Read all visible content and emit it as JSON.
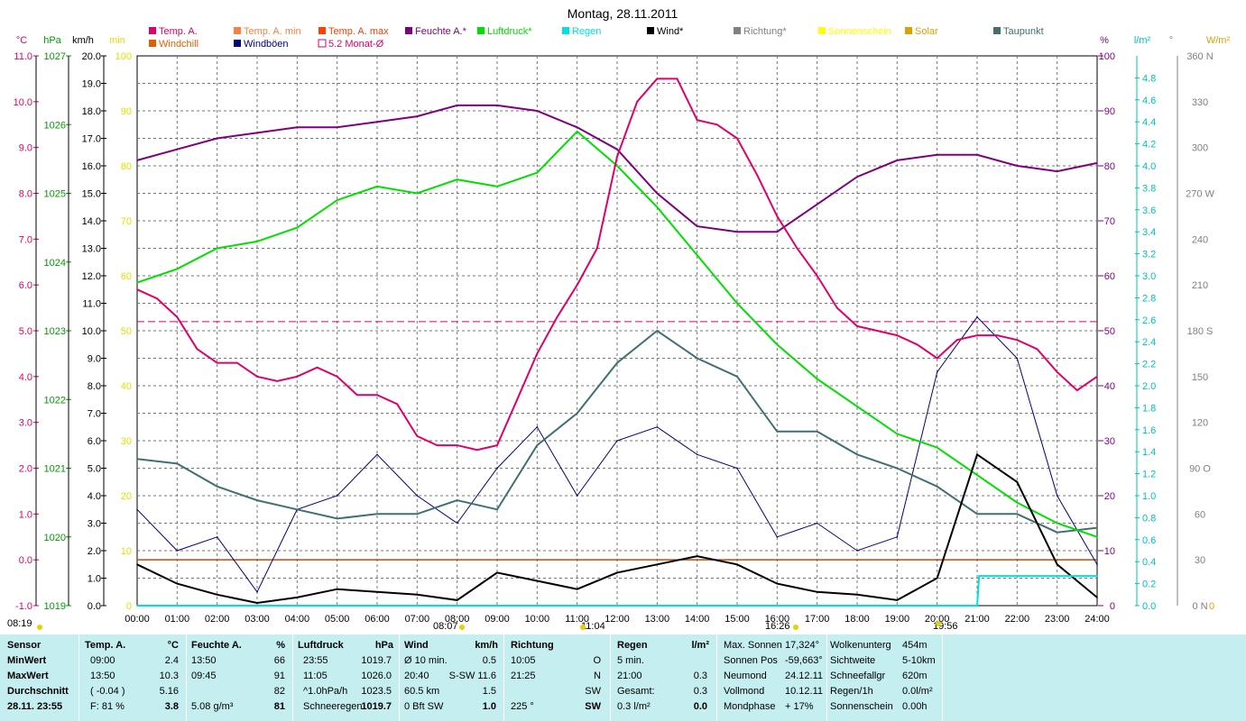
{
  "chart_data": {
    "type": "line",
    "title": "Montag, 28.11.2011",
    "legend": [
      {
        "name": "Temp. A.",
        "color": "#e0006a",
        "kind": "fill"
      },
      {
        "name": "Windchill",
        "color": "#e06000",
        "kind": "fill"
      },
      {
        "name": "Temp. A. min",
        "color": "#ff7f40",
        "kind": "fill"
      },
      {
        "name": "Windböen",
        "color": "#000080",
        "kind": "fill"
      },
      {
        "name": "Temp. A. max",
        "color": "#ff4000",
        "kind": "fill"
      },
      {
        "name": "5.2 Monat-Ø",
        "color": "#e0006a",
        "kind": "box"
      },
      {
        "name": "Feuchte A.*",
        "color": "#7f007f",
        "kind": "fill"
      },
      {
        "name": "Luftdruck*",
        "color": "#00e000",
        "kind": "fill"
      },
      {
        "name": "Regen",
        "color": "#00e0e0",
        "kind": "fill"
      },
      {
        "name": "Wind*",
        "color": "#000000",
        "kind": "fill"
      },
      {
        "name": "Richtung*",
        "color": "#808080",
        "kind": "fill"
      },
      {
        "name": "Sonnenschein",
        "color": "#ffff00",
        "kind": "fill"
      },
      {
        "name": "Solar",
        "color": "#e0a000",
        "kind": "fill"
      },
      {
        "name": "Taupunkt",
        "color": "#407070",
        "kind": "fill"
      }
    ],
    "x_ticks": [
      "00:00",
      "01:00",
      "02:00",
      "03:00",
      "04:00",
      "05:00",
      "06:00",
      "07:00",
      "08:00",
      "09:00",
      "10:00",
      "11:00",
      "12:00",
      "13:00",
      "14:00",
      "15:00",
      "16:00",
      "17:00",
      "18:00",
      "19:00",
      "20:00",
      "21:00",
      "22:00",
      "23:00",
      "24:00"
    ],
    "axes": {
      "temp": {
        "unit": "°C",
        "color": "#e0006a",
        "min": -1.0,
        "max": 11.0,
        "ticks": [
          "11.0",
          "10.0",
          "9.0",
          "8.0",
          "7.0",
          "6.0",
          "5.0",
          "4.0",
          "3.0",
          "2.0",
          "1.0",
          "0.0",
          "-1.0"
        ]
      },
      "pressure": {
        "unit": "hPa",
        "color": "#00a000",
        "min": 1019,
        "max": 1027,
        "ticks": [
          "1027",
          "1026",
          "1025",
          "1024",
          "1023",
          "1022",
          "1021",
          "1020",
          "1019"
        ]
      },
      "wind": {
        "unit": "km/h",
        "color": "#000000",
        "min": 0,
        "max": 20,
        "ticks": [
          "20.0",
          "19.0",
          "18.0",
          "17.0",
          "16.0",
          "15.0",
          "14.0",
          "13.0",
          "12.0",
          "11.0",
          "10.0",
          "9.0",
          "8.0",
          "7.0",
          "6.0",
          "5.0",
          "4.0",
          "3.0",
          "2.0",
          "1.0",
          "0.0"
        ]
      },
      "sun": {
        "unit": "min",
        "color": "#e0e000",
        "min": 0,
        "max": 100,
        "ticks": [
          "100",
          "90",
          "80",
          "70",
          "60",
          "50",
          "40",
          "30",
          "20",
          "10",
          "0"
        ]
      },
      "humidity": {
        "unit": "%",
        "color": "#7f007f",
        "min": 0,
        "max": 100,
        "ticks": [
          "100",
          "90",
          "80",
          "70",
          "60",
          "50",
          "40",
          "30",
          "20",
          "10",
          "0"
        ]
      },
      "rain": {
        "unit": "l/m²",
        "color": "#00c0c0",
        "min": 0,
        "max": 5,
        "ticks": [
          "4.8",
          "4.6",
          "4.4",
          "4.2",
          "4.0",
          "3.8",
          "3.6",
          "3.4",
          "3.2",
          "3.0",
          "2.8",
          "2.6",
          "2.4",
          "2.2",
          "2.0",
          "1.8",
          "1.6",
          "1.4",
          "1.2",
          "1.0",
          "0.8",
          "0.6",
          "0.4",
          "0.2",
          "0.0"
        ]
      },
      "direction": {
        "unit": "°",
        "color": "#808080",
        "min": 0,
        "max": 360,
        "ticks": [
          "360 N",
          "330",
          "300",
          "270 W",
          "240",
          "210",
          "180 S",
          "150",
          "120",
          "90 O",
          "60",
          "30",
          "0 N"
        ]
      },
      "solar": {
        "unit": "W/m²",
        "color": "#e0a000",
        "ticks": [
          "0"
        ]
      }
    },
    "series": [
      {
        "name": "Temp. A.",
        "axis": "temp",
        "color": "#e0006a",
        "points": [
          [
            0,
            5.9
          ],
          [
            0.5,
            5.7
          ],
          [
            1,
            5.3
          ],
          [
            1.5,
            4.6
          ],
          [
            2,
            4.3
          ],
          [
            2.5,
            4.3
          ],
          [
            3,
            4.0
          ],
          [
            3.5,
            3.9
          ],
          [
            4,
            4.0
          ],
          [
            4.5,
            4.2
          ],
          [
            5,
            4.0
          ],
          [
            5.5,
            3.6
          ],
          [
            6,
            3.6
          ],
          [
            6.5,
            3.4
          ],
          [
            7,
            2.7
          ],
          [
            7.5,
            2.5
          ],
          [
            8,
            2.5
          ],
          [
            8.5,
            2.4
          ],
          [
            9,
            2.5
          ],
          [
            9.5,
            3.5
          ],
          [
            10,
            4.5
          ],
          [
            10.5,
            5.3
          ],
          [
            11,
            6.0
          ],
          [
            11.5,
            6.8
          ],
          [
            12,
            8.8
          ],
          [
            12.5,
            10.0
          ],
          [
            13,
            10.5
          ],
          [
            13.5,
            10.5
          ],
          [
            14,
            9.6
          ],
          [
            14.5,
            9.5
          ],
          [
            15,
            9.2
          ],
          [
            15.5,
            8.4
          ],
          [
            16,
            7.5
          ],
          [
            16.5,
            6.8
          ],
          [
            17,
            6.2
          ],
          [
            17.5,
            5.5
          ],
          [
            18,
            5.1
          ],
          [
            18.5,
            5.0
          ],
          [
            19,
            4.9
          ],
          [
            19.5,
            4.7
          ],
          [
            20,
            4.4
          ],
          [
            20.5,
            4.8
          ],
          [
            21,
            4.9
          ],
          [
            21.5,
            4.9
          ],
          [
            22,
            4.8
          ],
          [
            22.5,
            4.6
          ],
          [
            23,
            4.1
          ],
          [
            23.5,
            3.7
          ],
          [
            24,
            4.0
          ]
        ]
      },
      {
        "name": "Feuchte A.*",
        "axis": "humidity",
        "color": "#7f007f",
        "points": [
          [
            0,
            81
          ],
          [
            1,
            83
          ],
          [
            2,
            85
          ],
          [
            3,
            86
          ],
          [
            4,
            87
          ],
          [
            5,
            87
          ],
          [
            6,
            88
          ],
          [
            7,
            89
          ],
          [
            8,
            91
          ],
          [
            9,
            91
          ],
          [
            10,
            90
          ],
          [
            11,
            87
          ],
          [
            12,
            83
          ],
          [
            13,
            75
          ],
          [
            14,
            69
          ],
          [
            15,
            68
          ],
          [
            16,
            68
          ],
          [
            17,
            73
          ],
          [
            18,
            78
          ],
          [
            19,
            81
          ],
          [
            20,
            82
          ],
          [
            21,
            82
          ],
          [
            22,
            80
          ],
          [
            23,
            79
          ],
          [
            24,
            80.5
          ]
        ]
      },
      {
        "name": "Luftdruck*",
        "axis": "pressure",
        "color": "#00e000",
        "points": [
          [
            0,
            1023.7
          ],
          [
            1,
            1023.9
          ],
          [
            2,
            1024.2
          ],
          [
            3,
            1024.3
          ],
          [
            4,
            1024.5
          ],
          [
            5,
            1024.9
          ],
          [
            6,
            1025.1
          ],
          [
            7,
            1025.0
          ],
          [
            8,
            1025.2
          ],
          [
            9,
            1025.1
          ],
          [
            10,
            1025.3
          ],
          [
            11,
            1025.9
          ],
          [
            12,
            1025.4
          ],
          [
            13,
            1024.8
          ],
          [
            14,
            1024.1
          ],
          [
            15,
            1023.4
          ],
          [
            16,
            1022.8
          ],
          [
            17,
            1022.3
          ],
          [
            18,
            1021.9
          ],
          [
            19,
            1021.5
          ],
          [
            20,
            1021.3
          ],
          [
            21,
            1020.9
          ],
          [
            22,
            1020.5
          ],
          [
            23,
            1020.2
          ],
          [
            24,
            1020.0
          ]
        ]
      },
      {
        "name": "Taupunkt",
        "axis": "temp",
        "color": "#407070",
        "points": [
          [
            0,
            2.2
          ],
          [
            1,
            2.1
          ],
          [
            2,
            1.6
          ],
          [
            3,
            1.3
          ],
          [
            4,
            1.1
          ],
          [
            5,
            0.9
          ],
          [
            6,
            1.0
          ],
          [
            7,
            1.0
          ],
          [
            8,
            1.3
          ],
          [
            9,
            1.1
          ],
          [
            10,
            2.5
          ],
          [
            11,
            3.2
          ],
          [
            12,
            4.3
          ],
          [
            13,
            5.0
          ],
          [
            14,
            4.4
          ],
          [
            15,
            4.0
          ],
          [
            16,
            2.8
          ],
          [
            17,
            2.8
          ],
          [
            18,
            2.3
          ],
          [
            19,
            2.0
          ],
          [
            20,
            1.6
          ],
          [
            21,
            1.0
          ],
          [
            22,
            1.0
          ],
          [
            23,
            0.6
          ],
          [
            24,
            0.7
          ]
        ]
      },
      {
        "name": "Wind*",
        "axis": "wind",
        "color": "#000000",
        "points": [
          [
            0,
            1.5
          ],
          [
            1,
            0.8
          ],
          [
            2,
            0.4
          ],
          [
            3,
            0.1
          ],
          [
            4,
            0.3
          ],
          [
            5,
            0.6
          ],
          [
            6,
            0.5
          ],
          [
            7,
            0.4
          ],
          [
            8,
            0.2
          ],
          [
            9,
            1.2
          ],
          [
            10,
            0.9
          ],
          [
            11,
            0.6
          ],
          [
            12,
            1.2
          ],
          [
            13,
            1.5
          ],
          [
            14,
            1.8
          ],
          [
            15,
            1.5
          ],
          [
            16,
            0.8
          ],
          [
            17,
            0.5
          ],
          [
            18,
            0.4
          ],
          [
            19,
            0.2
          ],
          [
            20,
            1.0
          ],
          [
            21,
            5.5
          ],
          [
            22,
            4.5
          ],
          [
            23,
            1.5
          ],
          [
            24,
            0.3
          ]
        ]
      },
      {
        "name": "Windböen",
        "axis": "wind",
        "color": "#000080",
        "points": [
          [
            0,
            3.5
          ],
          [
            1,
            2.0
          ],
          [
            2,
            2.5
          ],
          [
            3,
            0.5
          ],
          [
            4,
            3.5
          ],
          [
            5,
            4.0
          ],
          [
            6,
            5.5
          ],
          [
            7,
            4.0
          ],
          [
            8,
            3.0
          ],
          [
            9,
            5.0
          ],
          [
            10,
            6.5
          ],
          [
            11,
            4.0
          ],
          [
            12,
            6.0
          ],
          [
            13,
            6.5
          ],
          [
            14,
            5.5
          ],
          [
            15,
            5.0
          ],
          [
            16,
            2.5
          ],
          [
            17,
            3.0
          ],
          [
            18,
            2.0
          ],
          [
            19,
            2.5
          ],
          [
            20,
            8.5
          ],
          [
            21,
            10.5
          ],
          [
            22,
            9.0
          ],
          [
            23,
            4.0
          ],
          [
            24,
            1.5
          ]
        ]
      },
      {
        "name": "Regen",
        "axis": "rain",
        "color": "#00e0e0",
        "points": [
          [
            0,
            0
          ],
          [
            21,
            0
          ],
          [
            21.05,
            0.27
          ],
          [
            24,
            0.27
          ]
        ]
      }
    ],
    "monthly_avg_temp": 5.2,
    "windchill_line_temp": 0.0,
    "time_markers": [
      "08:19",
      "08:07",
      "11:04",
      "16:26",
      "19:56"
    ]
  },
  "stats": {
    "sensor": {
      "header": "Sensor",
      "rows": [
        "MinWert",
        "MaxWert",
        "Durchschnitt",
        "28.11. 23:55"
      ]
    },
    "temp": {
      "header": "Temp. A.",
      "unit": "°C",
      "rows": [
        [
          "09:00",
          "2.4"
        ],
        [
          "13:50",
          "10.3"
        ],
        [
          "( -0.04 )",
          "5.16"
        ],
        [
          "F: 81 %",
          "3.8"
        ]
      ]
    },
    "humidity": {
      "header": "Feuchte A.",
      "unit": "%",
      "rows": [
        [
          "13:50",
          "66"
        ],
        [
          "09:45",
          "91"
        ],
        [
          "",
          "82"
        ],
        [
          "5.08 g/m³",
          "81"
        ]
      ]
    },
    "pressure": {
      "header": "Luftdruck",
      "unit": "hPa",
      "rows": [
        [
          "23:55",
          "1019.7"
        ],
        [
          "11:05",
          "1026.0"
        ],
        [
          "^1.0hPa/h",
          "1023.5"
        ],
        [
          "Schneeregen",
          "1019.7"
        ]
      ]
    },
    "wind": {
      "header": "Wind",
      "unit": "km/h",
      "rows": [
        [
          "Ø 10 min.",
          "0.5"
        ],
        [
          "20:40",
          "S-SW 11.6"
        ],
        [
          "60.5 km",
          "1.5"
        ],
        [
          "0 Bft SW",
          "1.0"
        ]
      ]
    },
    "direction": {
      "header": "Richtung",
      "rows": [
        [
          "10:05",
          "O"
        ],
        [
          "21:25",
          "N"
        ],
        [
          "",
          "SW"
        ],
        [
          "225 °",
          "SW"
        ]
      ]
    },
    "rain": {
      "header": "Regen",
      "unit": "l/m²",
      "rows": [
        [
          "5 min.",
          ""
        ],
        [
          "21:00",
          "0.3"
        ],
        [
          "Gesamt:",
          "0.3"
        ],
        [
          "0.3 l/m²",
          "0.0"
        ]
      ]
    },
    "astro": {
      "rows": [
        [
          "Max. Sonnen",
          "17,324°"
        ],
        [
          "Sonnen Pos",
          "-59,663°"
        ],
        [
          "Neumond",
          "24.12.11"
        ],
        [
          "Vollmond",
          "10.12.11"
        ],
        [
          "Mondphase",
          "+ 17%"
        ]
      ]
    },
    "misc": {
      "rows": [
        [
          "Wolkenunterg",
          "454m"
        ],
        [
          "Sichtweite",
          "5-10km"
        ],
        [
          "Schneefallgr",
          "620m"
        ],
        [
          "Regen/1h",
          "0.0l/m²"
        ],
        [
          "Sonnenschein",
          "0.00h"
        ]
      ]
    }
  }
}
